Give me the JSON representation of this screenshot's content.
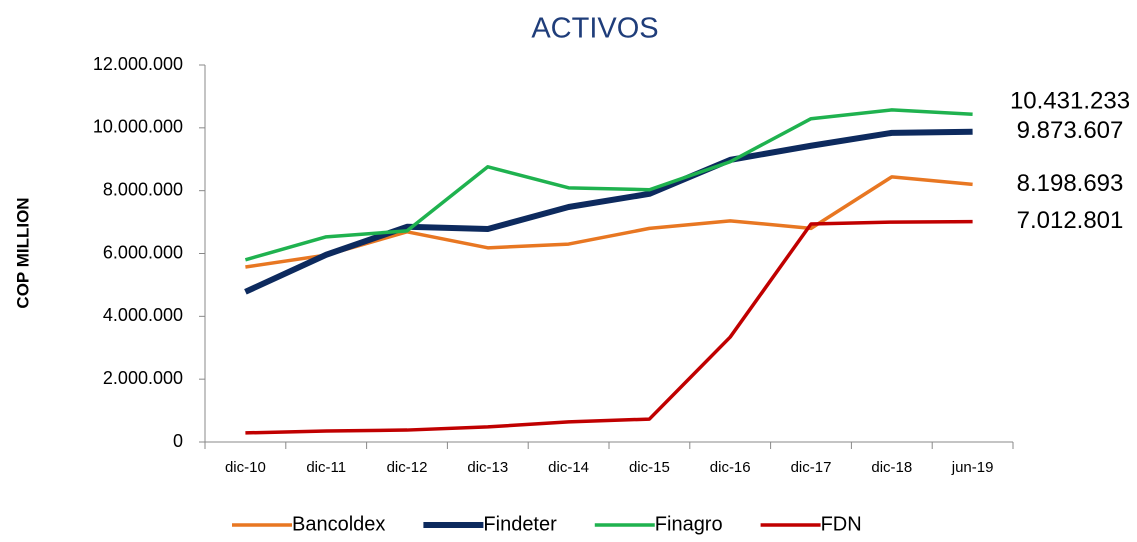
{
  "chart_data": {
    "type": "line",
    "title": "ACTIVOS",
    "ylabel": "COP MILLION",
    "categories": [
      "dic-10",
      "dic-11",
      "dic-12",
      "dic-13",
      "dic-14",
      "dic-15",
      "dic-16",
      "dic-17",
      "dic-18",
      "jun-19"
    ],
    "series": [
      {
        "name": "Bancoldex",
        "color": "#e87722",
        "values": [
          5570000,
          5950000,
          6690000,
          6180000,
          6300000,
          6800000,
          7040000,
          6800000,
          8440000,
          8198693
        ],
        "value_labels": [
          null,
          null,
          null,
          null,
          null,
          null,
          null,
          null,
          null,
          "8.198.693"
        ]
      },
      {
        "name": "Findeter",
        "color": "#0d2a5e",
        "values": [
          4780000,
          5960000,
          6850000,
          6780000,
          7480000,
          7900000,
          8980000,
          9430000,
          9840000,
          9873607
        ],
        "value_labels": [
          null,
          null,
          null,
          null,
          null,
          null,
          null,
          null,
          null,
          "9.873.607"
        ]
      },
      {
        "name": "Finagro",
        "color": "#1fb24f",
        "values": [
          5800000,
          6530000,
          6720000,
          8760000,
          8090000,
          8030000,
          8920000,
          10290000,
          10570000,
          10431233
        ],
        "value_labels": [
          null,
          null,
          null,
          null,
          null,
          null,
          null,
          null,
          null,
          "10.431.233"
        ]
      },
      {
        "name": "FDN",
        "color": "#c00000",
        "values": [
          290000,
          350000,
          380000,
          480000,
          640000,
          730000,
          3340000,
          6940000,
          7000000,
          7012801
        ],
        "value_labels": [
          null,
          null,
          null,
          null,
          null,
          null,
          null,
          null,
          null,
          "7.012.801"
        ]
      }
    ],
    "ylim": [
      0,
      12000000
    ],
    "yticks": [
      0,
      {
        "value": 2000000,
        "label": "2.000.000"
      },
      {
        "value": 4000000,
        "label": "4.000.000"
      },
      {
        "value": 6000000,
        "label": "6.000.000"
      },
      {
        "value": 8000000,
        "label": "8.000.000"
      },
      {
        "value": 10000000,
        "label": "10.000.000"
      },
      {
        "value": 12000000,
        "label": "12.000.000"
      }
    ],
    "grid": false,
    "legend": "bottom"
  }
}
